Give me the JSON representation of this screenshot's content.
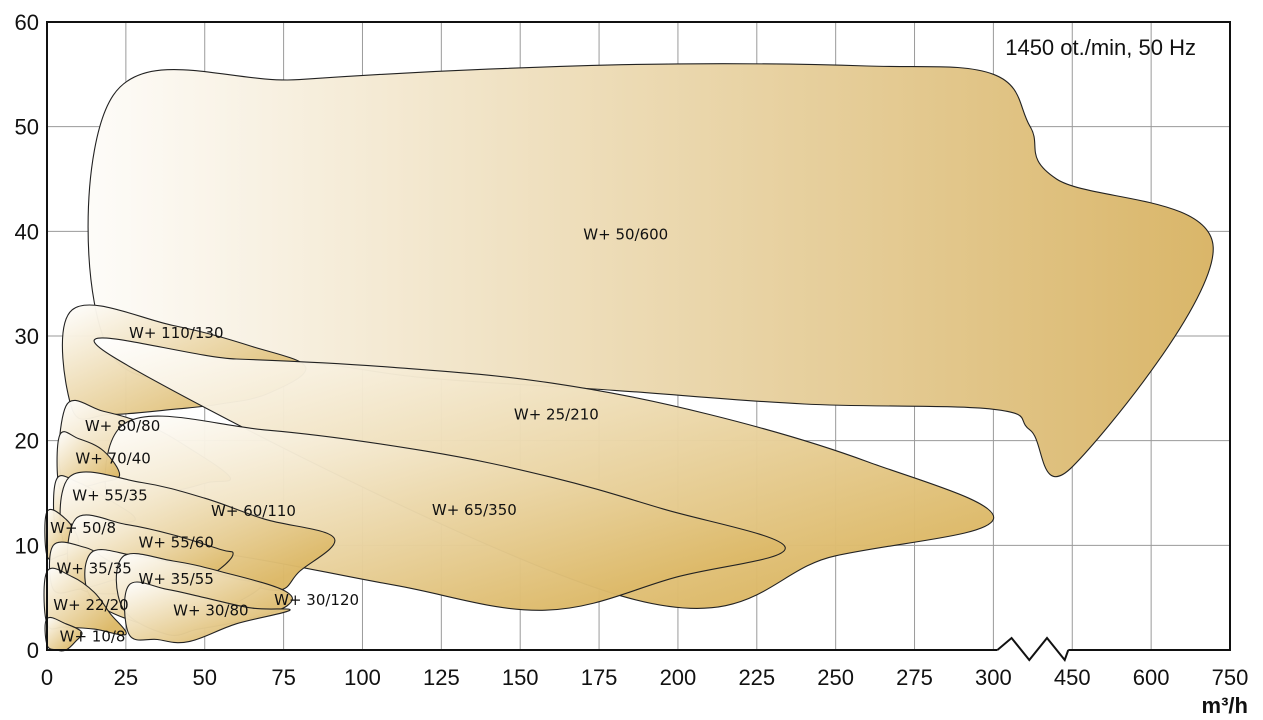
{
  "chart_data": {
    "type": "area",
    "annotation": "1450 ot./min, 50 Hz",
    "xunit": "m³/h",
    "axis_break_at": 300,
    "x_ticks": [
      "0",
      "25",
      "50",
      "75",
      "100",
      "125",
      "150",
      "175",
      "200",
      "225",
      "250",
      "275",
      "300",
      "450",
      "600",
      "750"
    ],
    "y_ticks": [
      "0",
      "10",
      "20",
      "30",
      "40",
      "50",
      "60"
    ],
    "ylim": [
      0,
      60
    ],
    "grid": true,
    "colors": {
      "light": "#ffffff",
      "dark": "#d9b567",
      "grid": "#9a9a9a",
      "outline": "#222222"
    },
    "series": [
      {
        "name": "W+ 50/600",
        "label_at": [
          170,
          39.2
        ],
        "points": [
          [
            21,
            53
          ],
          [
            80,
            54.5
          ],
          [
            140,
            55.5
          ],
          [
            200,
            56
          ],
          [
            260,
            55.8
          ],
          [
            300,
            55
          ],
          [
            370,
            50
          ],
          [
            420,
            45
          ],
          [
            718,
            38.5
          ],
          [
            450,
            17.5
          ],
          [
            370,
            21
          ],
          [
            300,
            23
          ],
          [
            240,
            23.5
          ],
          [
            180,
            24.8
          ],
          [
            120,
            26
          ],
          [
            80,
            27.5
          ],
          [
            21,
            28
          ]
        ]
      },
      {
        "name": "W+ 110/130",
        "label_at": [
          26,
          29.8
        ],
        "points": [
          [
            8,
            32.5
          ],
          [
            40,
            31
          ],
          [
            65,
            29
          ],
          [
            82,
            27
          ],
          [
            70,
            24.5
          ],
          [
            55,
            23.5
          ],
          [
            40,
            23
          ],
          [
            20,
            22.5
          ],
          [
            8,
            23
          ]
        ]
      },
      {
        "name": "W+ 25/210",
        "label_at": [
          148,
          22
        ],
        "points": [
          [
            21,
            28
          ],
          [
            60,
            27.8
          ],
          [
            110,
            27
          ],
          [
            160,
            25.5
          ],
          [
            210,
            22.5
          ],
          [
            260,
            18
          ],
          [
            300,
            12.5
          ],
          [
            250,
            9
          ],
          [
            184,
            5
          ]
        ]
      },
      {
        "name": "W+ 80/80",
        "label_at": [
          12,
          20.9
        ],
        "points": [
          [
            6,
            23.3
          ],
          [
            18,
            22.8
          ],
          [
            32,
            21.5
          ],
          [
            45,
            19.3
          ],
          [
            58,
            16.5
          ],
          [
            51,
            16
          ],
          [
            40,
            15.2
          ],
          [
            26,
            15
          ],
          [
            6,
            15.3
          ]
        ]
      },
      {
        "name": "W+ 65/350",
        "label_at": [
          122,
          12.9
        ],
        "points": [
          [
            24,
            21.5
          ],
          [
            70,
            21
          ],
          [
            120,
            19
          ],
          [
            160,
            16.5
          ],
          [
            195,
            13.5
          ],
          [
            234,
            9.8
          ],
          [
            200,
            7
          ],
          [
            158,
            3.8
          ],
          [
            110,
            6.2
          ],
          [
            60,
            9
          ],
          [
            24,
            10
          ]
        ]
      },
      {
        "name": "W+ 70/40",
        "label_at": [
          9,
          17.8
        ],
        "points": [
          [
            4,
            20.5
          ],
          [
            10,
            20.2
          ],
          [
            18,
            19
          ],
          [
            23,
            16.7
          ],
          [
            17,
            16
          ],
          [
            10,
            15.5
          ],
          [
            4,
            15.5
          ]
        ]
      },
      {
        "name": "W+ 55/35",
        "label_at": [
          8,
          14.3
        ],
        "points": [
          [
            3,
            16.3
          ],
          [
            10,
            16
          ],
          [
            20,
            14.3
          ],
          [
            28,
            12.5
          ],
          [
            19,
            12
          ],
          [
            10,
            11.2
          ],
          [
            3,
            11.5
          ]
        ]
      },
      {
        "name": "W+ 60/110",
        "label_at": [
          52,
          12.8
        ],
        "points": [
          [
            7,
            16.5
          ],
          [
            30,
            16
          ],
          [
            50,
            14.5
          ],
          [
            69,
            12.5
          ],
          [
            91,
            10.7
          ],
          [
            80,
            7.5
          ],
          [
            73,
            5.7
          ],
          [
            56,
            7
          ],
          [
            41,
            8
          ],
          [
            26,
            9
          ],
          [
            7,
            9
          ]
        ]
      },
      {
        "name": "W+ 50/8",
        "label_at": [
          1,
          11.2
        ],
        "points": [
          [
            0,
            13.2
          ],
          [
            6,
            12.5
          ],
          [
            10,
            10.5
          ],
          [
            8,
            9.5
          ],
          [
            4,
            9
          ],
          [
            0,
            9
          ]
        ]
      },
      {
        "name": "W+ 55/60",
        "label_at": [
          29,
          9.8
        ],
        "points": [
          [
            9,
            12.5
          ],
          [
            25,
            12
          ],
          [
            40,
            11
          ],
          [
            55,
            9.6
          ],
          [
            59,
            9.2
          ],
          [
            55,
            7.8
          ],
          [
            47,
            6.5
          ],
          [
            30,
            5.5
          ],
          [
            9,
            6.2
          ]
        ]
      },
      {
        "name": "W+ 35/35",
        "label_at": [
          3,
          7.3
        ],
        "points": [
          [
            2,
            10
          ],
          [
            12,
            9.8
          ],
          [
            18,
            8.8
          ],
          [
            25,
            7.3
          ],
          [
            19,
            6.5
          ],
          [
            10,
            5.8
          ],
          [
            2,
            5.8
          ]
        ]
      },
      {
        "name": "W+ 35/55",
        "label_at": [
          29,
          6.3
        ],
        "points": [
          [
            14,
            9.3
          ],
          [
            28,
            9
          ],
          [
            45,
            8
          ],
          [
            60,
            6.8
          ],
          [
            68,
            6.2
          ],
          [
            60,
            4.5
          ],
          [
            50,
            3.2
          ],
          [
            41,
            2.5
          ],
          [
            30,
            2.5
          ],
          [
            14,
            5
          ]
        ]
      },
      {
        "name": "W+ 30/120",
        "label_at": [
          72,
          4.3
        ],
        "points": [
          [
            24,
            8.9
          ],
          [
            40,
            8.5
          ],
          [
            55,
            7.5
          ],
          [
            75,
            5.7
          ],
          [
            76,
            4.2
          ],
          [
            62,
            2.8
          ],
          [
            48,
            2
          ],
          [
            38,
            1.5
          ],
          [
            24,
            4
          ]
        ]
      },
      {
        "name": "W+ 22/20",
        "label_at": [
          2,
          3.8
        ],
        "points": [
          [
            0,
            7.5
          ],
          [
            8,
            7
          ],
          [
            15,
            5.5
          ],
          [
            20,
            3.5
          ],
          [
            25,
            1.5
          ],
          [
            15,
            2
          ],
          [
            6,
            2.2
          ],
          [
            0,
            2.5
          ]
        ]
      },
      {
        "name": "W+ 30/80",
        "label_at": [
          40,
          3.3
        ],
        "points": [
          [
            26,
            6.2
          ],
          [
            38,
            5.8
          ],
          [
            50,
            5
          ],
          [
            65,
            4
          ],
          [
            77,
            3.8
          ],
          [
            60,
            2.5
          ],
          [
            45,
            0.8
          ],
          [
            35,
            1
          ],
          [
            26,
            1.5
          ]
        ]
      },
      {
        "name": "W+ 10/8",
        "label_at": [
          4,
          0.8
        ],
        "points": [
          [
            0,
            3
          ],
          [
            6,
            2.5
          ],
          [
            11,
            1.7
          ],
          [
            9,
            0.8
          ],
          [
            6,
            0
          ],
          [
            3,
            0
          ],
          [
            0,
            0.5
          ]
        ]
      }
    ]
  }
}
